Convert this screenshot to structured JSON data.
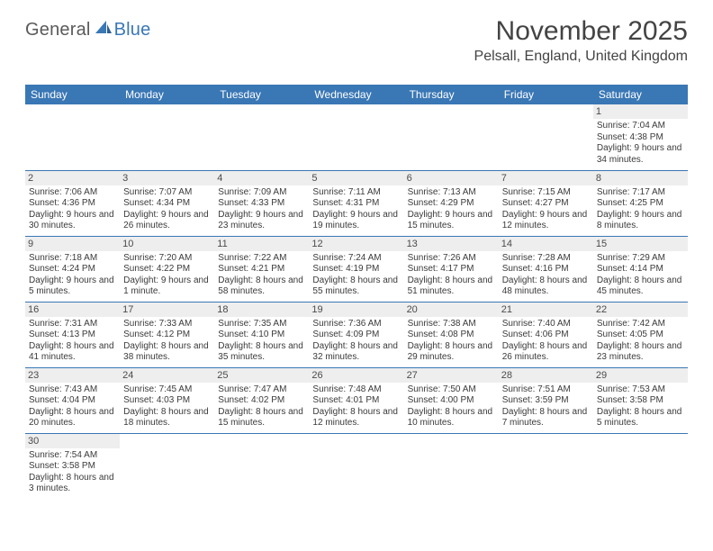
{
  "logo": {
    "text1": "General",
    "text2": "Blue"
  },
  "title": "November 2025",
  "location": "Pelsall, England, United Kingdom",
  "colors": {
    "header_bg": "#3a77b5",
    "header_text": "#ffffff",
    "daynum_bg": "#eeeeee",
    "border": "#3a77b5",
    "title_color": "#434343"
  },
  "weekdays": [
    "Sunday",
    "Monday",
    "Tuesday",
    "Wednesday",
    "Thursday",
    "Friday",
    "Saturday"
  ],
  "weeks": [
    [
      null,
      null,
      null,
      null,
      null,
      null,
      {
        "n": "1",
        "sr": "Sunrise: 7:04 AM",
        "ss": "Sunset: 4:38 PM",
        "dl": "Daylight: 9 hours and 34 minutes."
      }
    ],
    [
      {
        "n": "2",
        "sr": "Sunrise: 7:06 AM",
        "ss": "Sunset: 4:36 PM",
        "dl": "Daylight: 9 hours and 30 minutes."
      },
      {
        "n": "3",
        "sr": "Sunrise: 7:07 AM",
        "ss": "Sunset: 4:34 PM",
        "dl": "Daylight: 9 hours and 26 minutes."
      },
      {
        "n": "4",
        "sr": "Sunrise: 7:09 AM",
        "ss": "Sunset: 4:33 PM",
        "dl": "Daylight: 9 hours and 23 minutes."
      },
      {
        "n": "5",
        "sr": "Sunrise: 7:11 AM",
        "ss": "Sunset: 4:31 PM",
        "dl": "Daylight: 9 hours and 19 minutes."
      },
      {
        "n": "6",
        "sr": "Sunrise: 7:13 AM",
        "ss": "Sunset: 4:29 PM",
        "dl": "Daylight: 9 hours and 15 minutes."
      },
      {
        "n": "7",
        "sr": "Sunrise: 7:15 AM",
        "ss": "Sunset: 4:27 PM",
        "dl": "Daylight: 9 hours and 12 minutes."
      },
      {
        "n": "8",
        "sr": "Sunrise: 7:17 AM",
        "ss": "Sunset: 4:25 PM",
        "dl": "Daylight: 9 hours and 8 minutes."
      }
    ],
    [
      {
        "n": "9",
        "sr": "Sunrise: 7:18 AM",
        "ss": "Sunset: 4:24 PM",
        "dl": "Daylight: 9 hours and 5 minutes."
      },
      {
        "n": "10",
        "sr": "Sunrise: 7:20 AM",
        "ss": "Sunset: 4:22 PM",
        "dl": "Daylight: 9 hours and 1 minute."
      },
      {
        "n": "11",
        "sr": "Sunrise: 7:22 AM",
        "ss": "Sunset: 4:21 PM",
        "dl": "Daylight: 8 hours and 58 minutes."
      },
      {
        "n": "12",
        "sr": "Sunrise: 7:24 AM",
        "ss": "Sunset: 4:19 PM",
        "dl": "Daylight: 8 hours and 55 minutes."
      },
      {
        "n": "13",
        "sr": "Sunrise: 7:26 AM",
        "ss": "Sunset: 4:17 PM",
        "dl": "Daylight: 8 hours and 51 minutes."
      },
      {
        "n": "14",
        "sr": "Sunrise: 7:28 AM",
        "ss": "Sunset: 4:16 PM",
        "dl": "Daylight: 8 hours and 48 minutes."
      },
      {
        "n": "15",
        "sr": "Sunrise: 7:29 AM",
        "ss": "Sunset: 4:14 PM",
        "dl": "Daylight: 8 hours and 45 minutes."
      }
    ],
    [
      {
        "n": "16",
        "sr": "Sunrise: 7:31 AM",
        "ss": "Sunset: 4:13 PM",
        "dl": "Daylight: 8 hours and 41 minutes."
      },
      {
        "n": "17",
        "sr": "Sunrise: 7:33 AM",
        "ss": "Sunset: 4:12 PM",
        "dl": "Daylight: 8 hours and 38 minutes."
      },
      {
        "n": "18",
        "sr": "Sunrise: 7:35 AM",
        "ss": "Sunset: 4:10 PM",
        "dl": "Daylight: 8 hours and 35 minutes."
      },
      {
        "n": "19",
        "sr": "Sunrise: 7:36 AM",
        "ss": "Sunset: 4:09 PM",
        "dl": "Daylight: 8 hours and 32 minutes."
      },
      {
        "n": "20",
        "sr": "Sunrise: 7:38 AM",
        "ss": "Sunset: 4:08 PM",
        "dl": "Daylight: 8 hours and 29 minutes."
      },
      {
        "n": "21",
        "sr": "Sunrise: 7:40 AM",
        "ss": "Sunset: 4:06 PM",
        "dl": "Daylight: 8 hours and 26 minutes."
      },
      {
        "n": "22",
        "sr": "Sunrise: 7:42 AM",
        "ss": "Sunset: 4:05 PM",
        "dl": "Daylight: 8 hours and 23 minutes."
      }
    ],
    [
      {
        "n": "23",
        "sr": "Sunrise: 7:43 AM",
        "ss": "Sunset: 4:04 PM",
        "dl": "Daylight: 8 hours and 20 minutes."
      },
      {
        "n": "24",
        "sr": "Sunrise: 7:45 AM",
        "ss": "Sunset: 4:03 PM",
        "dl": "Daylight: 8 hours and 18 minutes."
      },
      {
        "n": "25",
        "sr": "Sunrise: 7:47 AM",
        "ss": "Sunset: 4:02 PM",
        "dl": "Daylight: 8 hours and 15 minutes."
      },
      {
        "n": "26",
        "sr": "Sunrise: 7:48 AM",
        "ss": "Sunset: 4:01 PM",
        "dl": "Daylight: 8 hours and 12 minutes."
      },
      {
        "n": "27",
        "sr": "Sunrise: 7:50 AM",
        "ss": "Sunset: 4:00 PM",
        "dl": "Daylight: 8 hours and 10 minutes."
      },
      {
        "n": "28",
        "sr": "Sunrise: 7:51 AM",
        "ss": "Sunset: 3:59 PM",
        "dl": "Daylight: 8 hours and 7 minutes."
      },
      {
        "n": "29",
        "sr": "Sunrise: 7:53 AM",
        "ss": "Sunset: 3:58 PM",
        "dl": "Daylight: 8 hours and 5 minutes."
      }
    ],
    [
      {
        "n": "30",
        "sr": "Sunrise: 7:54 AM",
        "ss": "Sunset: 3:58 PM",
        "dl": "Daylight: 8 hours and 3 minutes."
      },
      null,
      null,
      null,
      null,
      null,
      null
    ]
  ]
}
